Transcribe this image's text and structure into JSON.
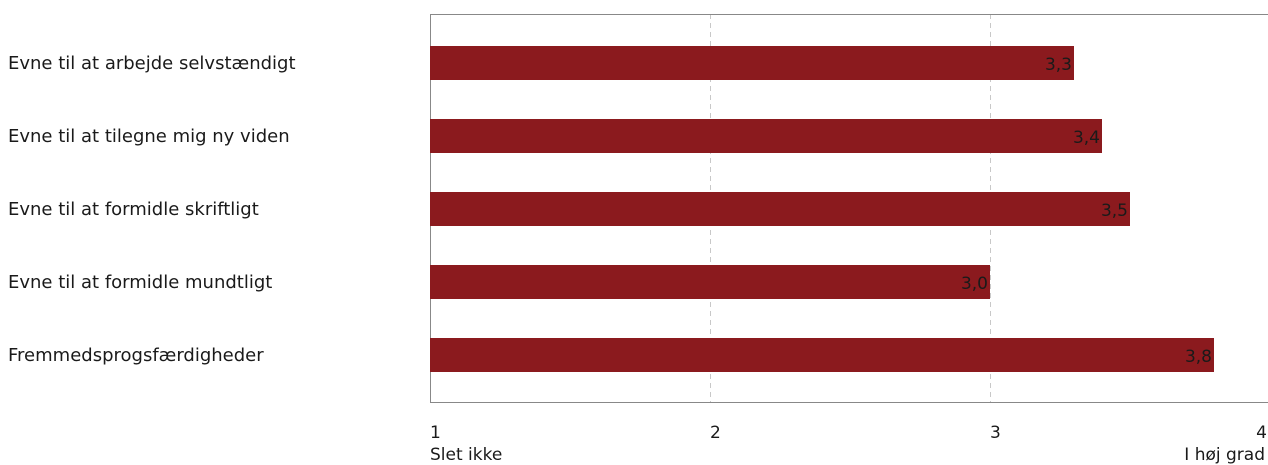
{
  "chart_data": {
    "type": "bar",
    "orientation": "horizontal",
    "categories": [
      "Evne til at arbejde selvstændigt",
      "Evne til at tilegne mig ny viden",
      "Evne til at formidle skriftligt",
      "Evne til at formidle mundtligt",
      "Fremmedsprogsfærdigheder"
    ],
    "values": [
      3.3,
      3.4,
      3.5,
      3.0,
      3.8
    ],
    "value_labels": [
      "3,3",
      "3,4",
      "3,5",
      "3,0",
      "3,8"
    ],
    "xlim": [
      1,
      4
    ],
    "xticks": [
      1,
      2,
      3,
      4
    ],
    "xtick_labels": [
      "1",
      "2",
      "3",
      "4"
    ],
    "scale_min_label": "Slet ikke",
    "scale_max_label": "I høj grad",
    "grid": true,
    "bar_color": "#8b1a1e"
  }
}
